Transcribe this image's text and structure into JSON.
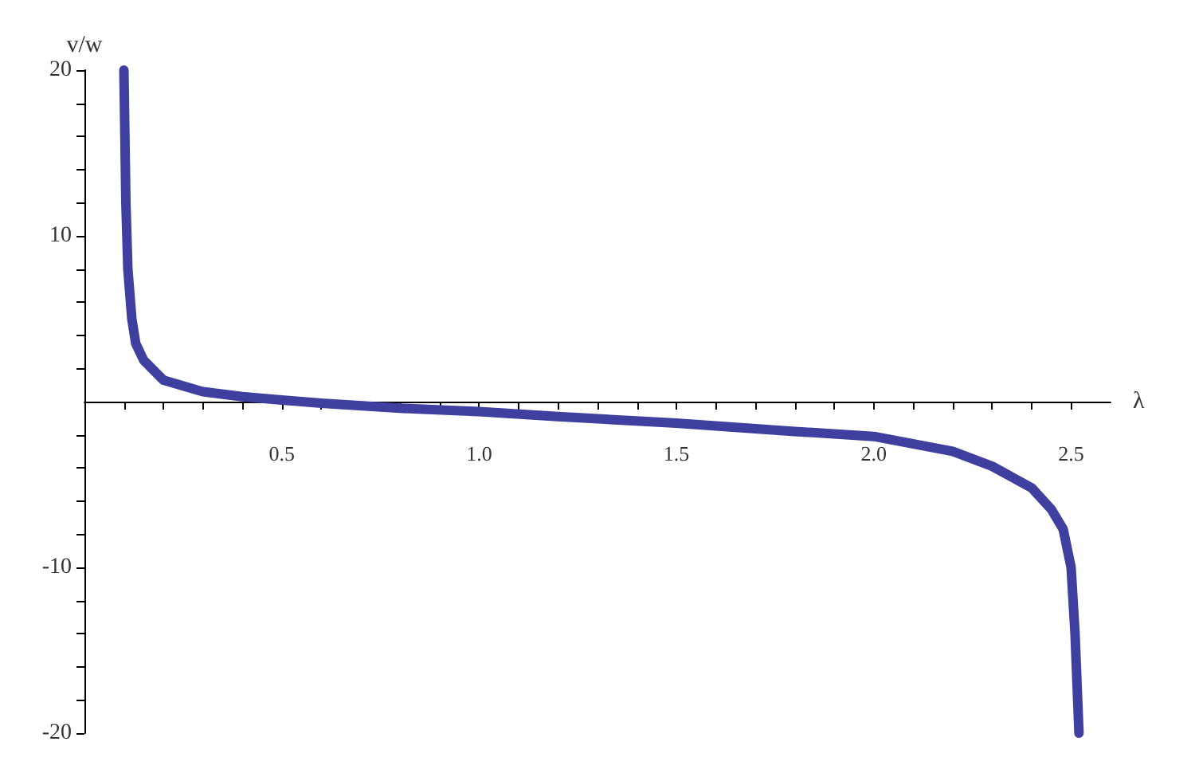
{
  "chart_data": {
    "type": "line",
    "xlabel": "λ",
    "ylabel": "v/w",
    "x": [
      0.1,
      0.105,
      0.11,
      0.12,
      0.13,
      0.15,
      0.2,
      0.3,
      0.4,
      0.5,
      0.6,
      0.8,
      1.0,
      1.2,
      1.5,
      1.8,
      2.0,
      2.2,
      2.3,
      2.4,
      2.45,
      2.48,
      2.5,
      2.51,
      2.52
    ],
    "series": [
      {
        "color": "#3f3f9f",
        "values": [
          20,
          12,
          8,
          5,
          3.5,
          2.5,
          1.3,
          0.6,
          0.3,
          0.1,
          -0.1,
          -0.4,
          -0.6,
          -0.9,
          -1.3,
          -1.8,
          -2.1,
          -3,
          -3.9,
          -5.2,
          -6.5,
          -7.7,
          -10,
          -14,
          -20
        ]
      }
    ],
    "xlim": [
      0,
      2.6
    ],
    "ylim": [
      -20,
      20
    ],
    "xticks": [
      {
        "value": 0.1,
        "label": null
      },
      {
        "value": 0.2,
        "label": null
      },
      {
        "value": 0.3,
        "label": null
      },
      {
        "value": 0.4,
        "label": null
      },
      {
        "value": 0.5,
        "label": "0.5"
      },
      {
        "value": 0.6,
        "label": null
      },
      {
        "value": 0.7,
        "label": null
      },
      {
        "value": 0.8,
        "label": null
      },
      {
        "value": 0.9,
        "label": null
      },
      {
        "value": 1,
        "label": "1.0"
      },
      {
        "value": 1.1,
        "label": null
      },
      {
        "value": 1.2,
        "label": null
      },
      {
        "value": 1.3,
        "label": null
      },
      {
        "value": 1.4,
        "label": null
      },
      {
        "value": 1.5,
        "label": "1.5"
      },
      {
        "value": 1.6,
        "label": null
      },
      {
        "value": 1.7,
        "label": null
      },
      {
        "value": 1.8,
        "label": null
      },
      {
        "value": 1.9,
        "label": null
      },
      {
        "value": 2,
        "label": "2.0"
      },
      {
        "value": 2.1,
        "label": null
      },
      {
        "value": 2.2,
        "label": null
      },
      {
        "value": 2.3,
        "label": null
      },
      {
        "value": 2.4,
        "label": null
      },
      {
        "value": 2.5,
        "label": "2.5"
      }
    ],
    "yticks": [
      -20,
      {
        "value": -18,
        "label": null
      },
      {
        "value": -16,
        "label": null
      },
      {
        "value": -14,
        "label": null
      },
      {
        "value": -12,
        "label": null
      },
      -10,
      {
        "value": -8,
        "label": null
      },
      {
        "value": -6,
        "label": null
      },
      {
        "value": -4,
        "label": null
      },
      {
        "value": -2,
        "label": null
      },
      {
        "value": 2,
        "label": null
      },
      {
        "value": 4,
        "label": null
      },
      {
        "value": 6,
        "label": null
      },
      {
        "value": 8,
        "label": null
      },
      10,
      {
        "value": 12,
        "label": null
      },
      {
        "value": 14,
        "label": null
      },
      {
        "value": 16,
        "label": null
      },
      {
        "value": 18,
        "label": null
      },
      20
    ],
    "grid": false,
    "marker": "none",
    "line_style": "solid"
  }
}
